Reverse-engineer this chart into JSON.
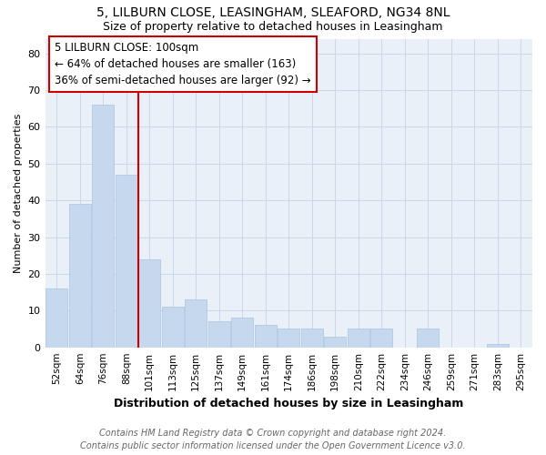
{
  "title1": "5, LILBURN CLOSE, LEASINGHAM, SLEAFORD, NG34 8NL",
  "title2": "Size of property relative to detached houses in Leasingham",
  "xlabel": "Distribution of detached houses by size in Leasingham",
  "ylabel": "Number of detached properties",
  "bar_color": "#c5d8ee",
  "bar_edge_color": "#a8c4e0",
  "grid_color": "#c8d8eb",
  "background_color": "#eaf0f8",
  "annotation_box_color": "#cc0000",
  "vline_color": "#cc0000",
  "categories": [
    "52sqm",
    "64sqm",
    "76sqm",
    "88sqm",
    "101sqm",
    "113sqm",
    "125sqm",
    "137sqm",
    "149sqm",
    "161sqm",
    "174sqm",
    "186sqm",
    "198sqm",
    "210sqm",
    "222sqm",
    "234sqm",
    "246sqm",
    "259sqm",
    "271sqm",
    "283sqm",
    "295sqm"
  ],
  "values": [
    16,
    39,
    66,
    47,
    24,
    11,
    13,
    7,
    8,
    6,
    5,
    5,
    3,
    5,
    5,
    0,
    5,
    0,
    0,
    1,
    0
  ],
  "ylim": [
    0,
    84
  ],
  "yticks": [
    0,
    10,
    20,
    30,
    40,
    50,
    60,
    70,
    80
  ],
  "vline_index": 4,
  "annotation_text": "5 LILBURN CLOSE: 100sqm\n← 64% of detached houses are smaller (163)\n36% of semi-detached houses are larger (92) →",
  "footer": "Contains HM Land Registry data © Crown copyright and database right 2024.\nContains public sector information licensed under the Open Government Licence v3.0.",
  "title1_fontsize": 10,
  "title2_fontsize": 9,
  "annotation_fontsize": 8.5,
  "footer_fontsize": 7,
  "xlabel_fontsize": 9,
  "ylabel_fontsize": 8
}
